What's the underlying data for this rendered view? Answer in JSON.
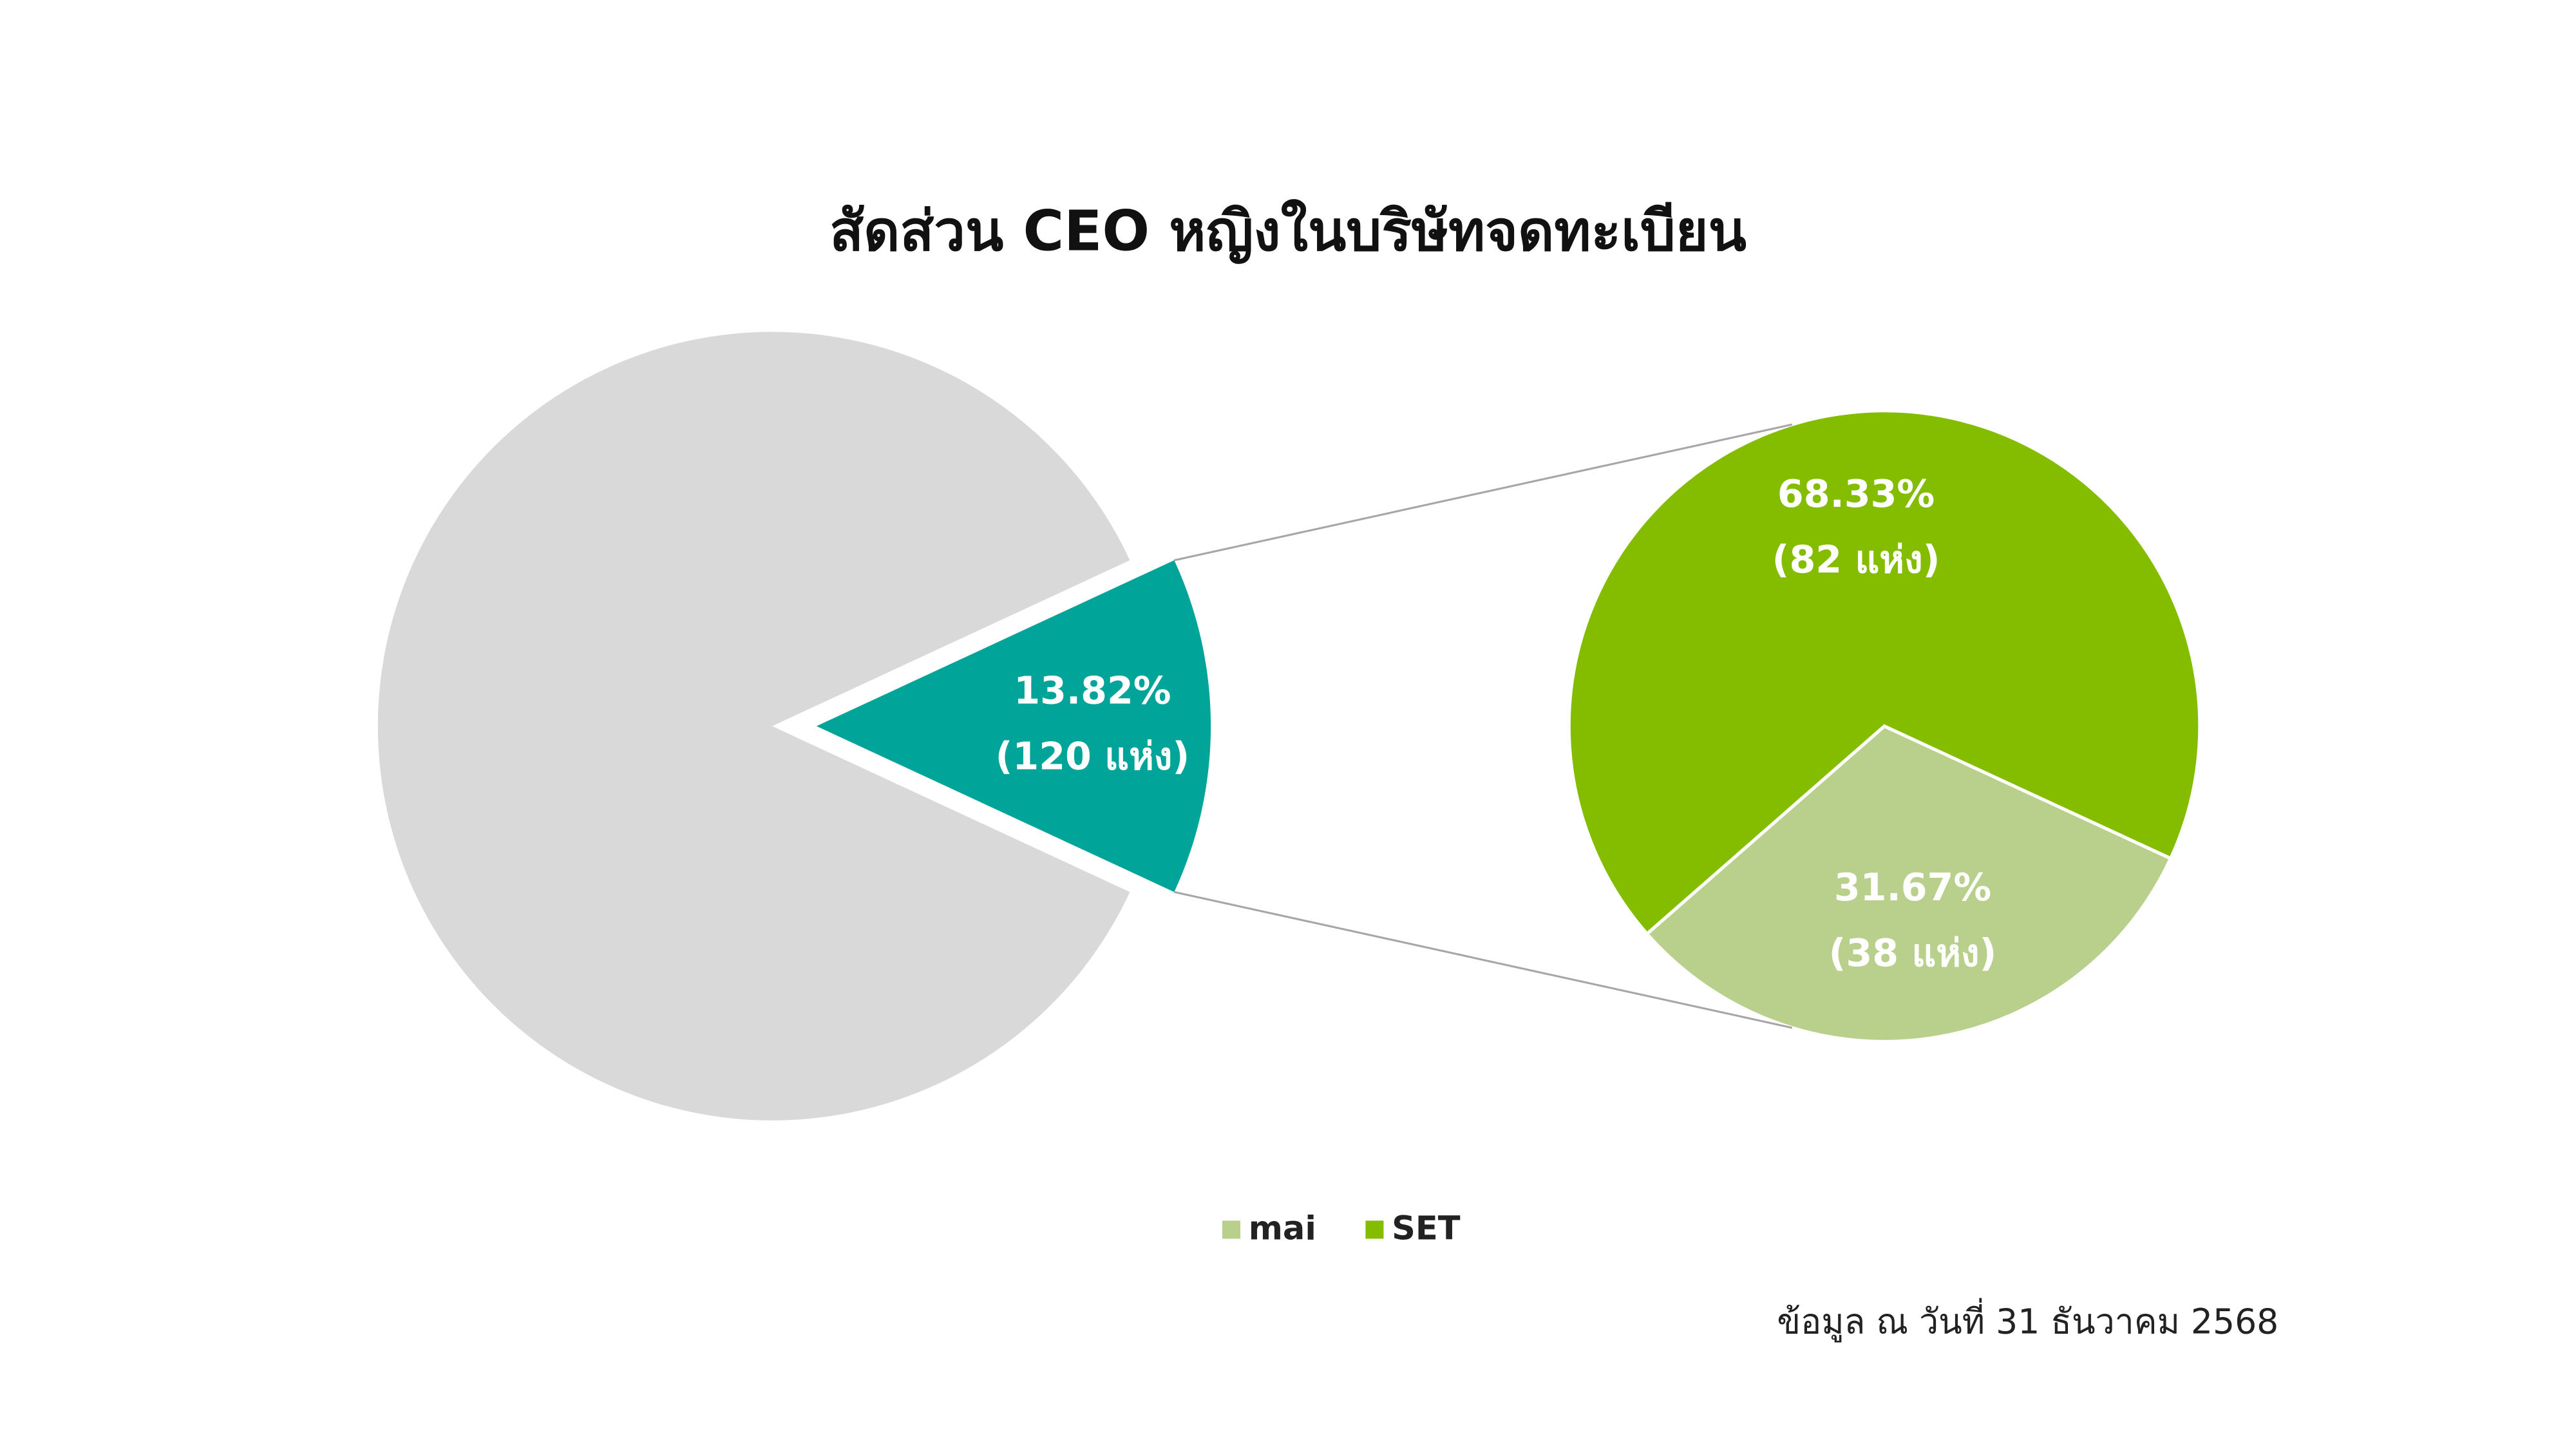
{
  "chart_data": [
    {
      "type": "pie",
      "title": "สัดส่วน CEO หญิงในบริษัทจดทะเบียน",
      "categories": [
        null,
        null
      ],
      "values": [
        86.18,
        13.82
      ],
      "value_labels": [
        null,
        "13.82%"
      ],
      "counts": [
        null,
        120
      ],
      "count_labels": [
        null,
        "(120 แห่ง)"
      ],
      "colors": [
        "#d9d9d9",
        "#00a499"
      ]
    },
    {
      "type": "pie",
      "categories": [
        "mai",
        "SET"
      ],
      "values": [
        31.67,
        68.33
      ],
      "value_labels": [
        "31.67%",
        "68.33%"
      ],
      "counts": [
        38,
        82
      ],
      "count_labels": [
        "(38 แห่ง)",
        "(82 แห่ง)"
      ],
      "colors": [
        "#b9d08d",
        "#84bd00"
      ],
      "legend": "bottom"
    }
  ],
  "footnote": "ข้อมูล ณ วันที่ 31 ธันวาคม 2568"
}
